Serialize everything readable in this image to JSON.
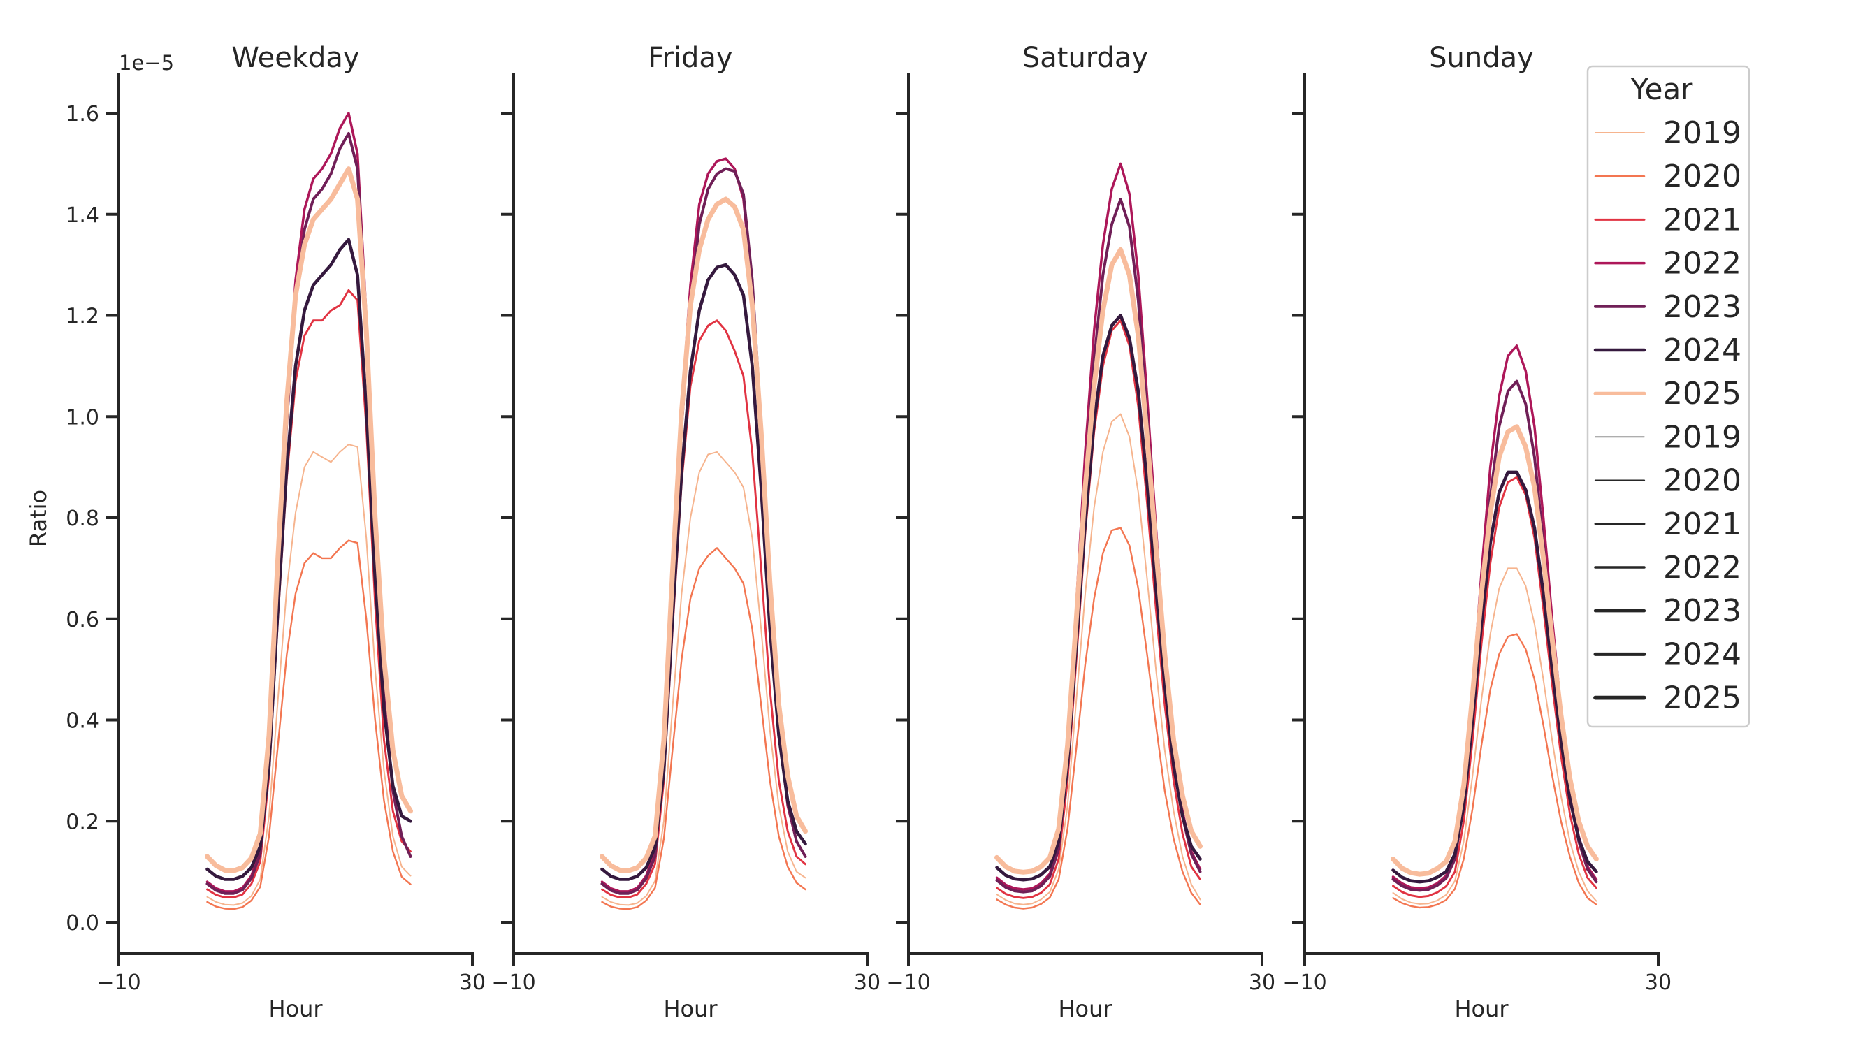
{
  "legend": {
    "title": "Year",
    "hue_entries": [
      {
        "label": "2019",
        "color": "#f6b48e",
        "swatch_width": 2.0
      },
      {
        "label": "2020",
        "color": "#f37651",
        "swatch_width": 2.5
      },
      {
        "label": "2021",
        "color": "#e13342",
        "swatch_width": 3.0
      },
      {
        "label": "2022",
        "color": "#ad1759",
        "swatch_width": 3.5
      },
      {
        "label": "2023",
        "color": "#701f57",
        "swatch_width": 4.0
      },
      {
        "label": "2024",
        "color": "#35193e",
        "swatch_width": 4.5
      },
      {
        "label": "2025",
        "color": "#f8bc9c",
        "swatch_width": 5.0
      }
    ],
    "size_entries": [
      {
        "label": "2019",
        "color": "#262626",
        "swatch_width": 1.5
      },
      {
        "label": "2020",
        "color": "#262626",
        "swatch_width": 2.2
      },
      {
        "label": "2021",
        "color": "#262626",
        "swatch_width": 2.9
      },
      {
        "label": "2022",
        "color": "#262626",
        "swatch_width": 3.6
      },
      {
        "label": "2023",
        "color": "#262626",
        "swatch_width": 4.3
      },
      {
        "label": "2024",
        "color": "#262626",
        "swatch_width": 5.0
      },
      {
        "label": "2025",
        "color": "#262626",
        "swatch_width": 5.8
      }
    ]
  },
  "chart_data": {
    "type": "line",
    "xlabel": "Hour",
    "ylabel": "Ratio",
    "y_offset_label": "1e−5",
    "xlim": [
      -10,
      30
    ],
    "ylim": [
      -0.062,
      1.68
    ],
    "x_tick_values": [
      -10,
      30
    ],
    "x_tick_labels": [
      "−10",
      "30"
    ],
    "y_tick_values": [
      0.0,
      0.2,
      0.4,
      0.6,
      0.8,
      1.0,
      1.2,
      1.4,
      1.6
    ],
    "y_tick_labels": [
      "0.0",
      "0.2",
      "0.4",
      "0.6",
      "0.8",
      "1.0",
      "1.2",
      "1.4",
      "1.6"
    ],
    "y_unit_multiplier": "1e-5",
    "grid": false,
    "legend_position": "upper right",
    "x": [
      0,
      1,
      2,
      3,
      4,
      5,
      6,
      7,
      8,
      9,
      10,
      11,
      12,
      13,
      14,
      15,
      16,
      17,
      18,
      19,
      20,
      21,
      22,
      23
    ],
    "years": [
      "2019",
      "2020",
      "2021",
      "2022",
      "2023",
      "2024",
      "2025"
    ],
    "palette": {
      "2019": "#f6b48e",
      "2020": "#f37651",
      "2021": "#e13342",
      "2022": "#ad1759",
      "2023": "#701f57",
      "2024": "#35193e",
      "2025": "#f8bc9c"
    },
    "line_widths": {
      "2019": 2.0,
      "2020": 2.4,
      "2021": 2.9,
      "2022": 3.5,
      "2023": 4.0,
      "2024": 4.6,
      "2025": 7.0
    },
    "panels": [
      {
        "title": "Weekday",
        "series": {
          "2019": [
            0.05,
            0.04,
            0.035,
            0.034,
            0.038,
            0.052,
            0.085,
            0.21,
            0.44,
            0.66,
            0.81,
            0.9,
            0.93,
            0.92,
            0.91,
            0.93,
            0.945,
            0.94,
            0.76,
            0.5,
            0.3,
            0.17,
            0.11,
            0.092
          ],
          "2020": [
            0.04,
            0.031,
            0.027,
            0.026,
            0.03,
            0.043,
            0.07,
            0.17,
            0.35,
            0.53,
            0.65,
            0.71,
            0.73,
            0.72,
            0.72,
            0.74,
            0.755,
            0.75,
            0.6,
            0.4,
            0.24,
            0.14,
            0.09,
            0.075
          ],
          "2021": [
            0.065,
            0.054,
            0.049,
            0.049,
            0.055,
            0.076,
            0.12,
            0.29,
            0.6,
            0.88,
            1.07,
            1.16,
            1.19,
            1.19,
            1.21,
            1.22,
            1.25,
            1.23,
            0.98,
            0.63,
            0.36,
            0.22,
            0.16,
            0.14
          ],
          "2022": [
            0.08,
            0.067,
            0.061,
            0.061,
            0.068,
            0.092,
            0.145,
            0.35,
            0.7,
            1.03,
            1.27,
            1.41,
            1.47,
            1.49,
            1.52,
            1.57,
            1.6,
            1.52,
            1.2,
            0.78,
            0.45,
            0.26,
            0.17,
            0.13
          ],
          "2023": [
            0.076,
            0.063,
            0.057,
            0.057,
            0.064,
            0.087,
            0.135,
            0.33,
            0.66,
            0.99,
            1.23,
            1.37,
            1.43,
            1.45,
            1.48,
            1.53,
            1.56,
            1.49,
            1.18,
            0.77,
            0.44,
            0.26,
            0.17,
            0.13
          ],
          "2024": [
            0.105,
            0.091,
            0.085,
            0.085,
            0.091,
            0.108,
            0.15,
            0.31,
            0.62,
            0.9,
            1.1,
            1.21,
            1.26,
            1.28,
            1.3,
            1.33,
            1.35,
            1.28,
            1.02,
            0.68,
            0.42,
            0.27,
            0.21,
            0.2
          ],
          "2025": [
            0.13,
            0.112,
            0.103,
            0.102,
            0.108,
            0.127,
            0.175,
            0.37,
            0.72,
            1.03,
            1.24,
            1.34,
            1.39,
            1.41,
            1.43,
            1.46,
            1.49,
            1.43,
            1.17,
            0.8,
            0.52,
            0.34,
            0.25,
            0.22
          ]
        }
      },
      {
        "title": "Friday",
        "series": {
          "2019": [
            0.05,
            0.04,
            0.035,
            0.034,
            0.038,
            0.052,
            0.082,
            0.2,
            0.43,
            0.65,
            0.8,
            0.89,
            0.925,
            0.93,
            0.91,
            0.89,
            0.86,
            0.76,
            0.58,
            0.38,
            0.23,
            0.14,
            0.1,
            0.088
          ],
          "2020": [
            0.04,
            0.031,
            0.027,
            0.026,
            0.03,
            0.043,
            0.068,
            0.165,
            0.345,
            0.52,
            0.64,
            0.7,
            0.725,
            0.74,
            0.72,
            0.7,
            0.67,
            0.58,
            0.43,
            0.28,
            0.17,
            0.11,
            0.078,
            0.065
          ],
          "2021": [
            0.065,
            0.054,
            0.049,
            0.049,
            0.055,
            0.076,
            0.115,
            0.28,
            0.585,
            0.87,
            1.06,
            1.15,
            1.18,
            1.19,
            1.17,
            1.13,
            1.08,
            0.93,
            0.7,
            0.46,
            0.28,
            0.18,
            0.13,
            0.115
          ],
          "2022": [
            0.08,
            0.067,
            0.061,
            0.061,
            0.068,
            0.092,
            0.14,
            0.34,
            0.69,
            1.02,
            1.26,
            1.42,
            1.48,
            1.505,
            1.51,
            1.49,
            1.43,
            1.25,
            0.96,
            0.63,
            0.38,
            0.23,
            0.16,
            0.13
          ],
          "2023": [
            0.076,
            0.063,
            0.057,
            0.057,
            0.064,
            0.087,
            0.13,
            0.32,
            0.655,
            0.98,
            1.22,
            1.38,
            1.45,
            1.48,
            1.49,
            1.485,
            1.44,
            1.27,
            0.98,
            0.64,
            0.39,
            0.235,
            0.16,
            0.13
          ],
          "2024": [
            0.105,
            0.091,
            0.085,
            0.085,
            0.091,
            0.108,
            0.148,
            0.3,
            0.61,
            0.89,
            1.09,
            1.21,
            1.27,
            1.295,
            1.3,
            1.28,
            1.24,
            1.1,
            0.86,
            0.58,
            0.37,
            0.24,
            0.18,
            0.155
          ],
          "2025": [
            0.13,
            0.112,
            0.103,
            0.102,
            0.108,
            0.127,
            0.17,
            0.36,
            0.7,
            1.01,
            1.22,
            1.33,
            1.39,
            1.42,
            1.43,
            1.415,
            1.37,
            1.22,
            0.97,
            0.67,
            0.43,
            0.29,
            0.21,
            0.18
          ]
        }
      },
      {
        "title": "Saturday",
        "series": {
          "2019": [
            0.055,
            0.044,
            0.037,
            0.035,
            0.037,
            0.045,
            0.06,
            0.105,
            0.23,
            0.44,
            0.65,
            0.82,
            0.93,
            0.99,
            1.005,
            0.96,
            0.85,
            0.68,
            0.5,
            0.34,
            0.22,
            0.13,
            0.075,
            0.045
          ],
          "2020": [
            0.045,
            0.035,
            0.029,
            0.027,
            0.029,
            0.036,
            0.049,
            0.085,
            0.185,
            0.345,
            0.51,
            0.64,
            0.73,
            0.775,
            0.78,
            0.745,
            0.66,
            0.53,
            0.39,
            0.26,
            0.165,
            0.1,
            0.058,
            0.035
          ],
          "2021": [
            0.068,
            0.056,
            0.05,
            0.048,
            0.05,
            0.058,
            0.075,
            0.125,
            0.28,
            0.52,
            0.77,
            0.97,
            1.1,
            1.17,
            1.19,
            1.14,
            1.02,
            0.83,
            0.62,
            0.43,
            0.28,
            0.175,
            0.11,
            0.085
          ],
          "2022": [
            0.088,
            0.074,
            0.067,
            0.065,
            0.067,
            0.077,
            0.096,
            0.155,
            0.34,
            0.63,
            0.93,
            1.17,
            1.34,
            1.45,
            1.5,
            1.44,
            1.28,
            1.04,
            0.78,
            0.54,
            0.35,
            0.22,
            0.14,
            0.105
          ],
          "2023": [
            0.083,
            0.069,
            0.062,
            0.06,
            0.062,
            0.072,
            0.091,
            0.145,
            0.32,
            0.59,
            0.88,
            1.11,
            1.28,
            1.38,
            1.43,
            1.375,
            1.23,
            1.0,
            0.75,
            0.52,
            0.335,
            0.21,
            0.135,
            0.1
          ],
          "2024": [
            0.108,
            0.093,
            0.086,
            0.084,
            0.086,
            0.094,
            0.11,
            0.16,
            0.31,
            0.55,
            0.79,
            0.99,
            1.12,
            1.18,
            1.2,
            1.155,
            1.05,
            0.87,
            0.66,
            0.47,
            0.31,
            0.21,
            0.15,
            0.125
          ],
          "2025": [
            0.128,
            0.11,
            0.101,
            0.099,
            0.101,
            0.11,
            0.128,
            0.185,
            0.35,
            0.6,
            0.86,
            1.06,
            1.21,
            1.3,
            1.33,
            1.28,
            1.16,
            0.96,
            0.74,
            0.53,
            0.36,
            0.25,
            0.18,
            0.15
          ]
        }
      },
      {
        "title": "Sunday",
        "series": {
          "2019": [
            0.058,
            0.046,
            0.039,
            0.036,
            0.037,
            0.043,
            0.054,
            0.082,
            0.16,
            0.29,
            0.44,
            0.57,
            0.66,
            0.7,
            0.7,
            0.665,
            0.59,
            0.48,
            0.36,
            0.25,
            0.16,
            0.1,
            0.062,
            0.042
          ],
          "2020": [
            0.048,
            0.038,
            0.032,
            0.029,
            0.03,
            0.035,
            0.044,
            0.066,
            0.125,
            0.225,
            0.35,
            0.46,
            0.53,
            0.565,
            0.57,
            0.54,
            0.48,
            0.39,
            0.29,
            0.2,
            0.13,
            0.078,
            0.048,
            0.035
          ],
          "2021": [
            0.072,
            0.06,
            0.053,
            0.05,
            0.052,
            0.059,
            0.071,
            0.1,
            0.2,
            0.36,
            0.55,
            0.71,
            0.82,
            0.87,
            0.88,
            0.845,
            0.76,
            0.62,
            0.47,
            0.33,
            0.215,
            0.135,
            0.088,
            0.068
          ],
          "2022": [
            0.09,
            0.077,
            0.069,
            0.067,
            0.069,
            0.077,
            0.092,
            0.135,
            0.26,
            0.46,
            0.69,
            0.9,
            1.04,
            1.12,
            1.14,
            1.09,
            0.98,
            0.8,
            0.6,
            0.42,
            0.27,
            0.17,
            0.11,
            0.085
          ],
          "2023": [
            0.085,
            0.072,
            0.065,
            0.063,
            0.065,
            0.073,
            0.087,
            0.125,
            0.24,
            0.43,
            0.65,
            0.84,
            0.98,
            1.05,
            1.07,
            1.025,
            0.92,
            0.75,
            0.57,
            0.4,
            0.26,
            0.16,
            0.105,
            0.08
          ],
          "2024": [
            0.103,
            0.089,
            0.082,
            0.08,
            0.082,
            0.089,
            0.1,
            0.135,
            0.23,
            0.4,
            0.59,
            0.75,
            0.85,
            0.89,
            0.89,
            0.855,
            0.78,
            0.65,
            0.5,
            0.36,
            0.245,
            0.165,
            0.12,
            0.1
          ],
          "2025": [
            0.125,
            0.107,
            0.098,
            0.095,
            0.097,
            0.106,
            0.12,
            0.16,
            0.27,
            0.45,
            0.65,
            0.81,
            0.92,
            0.97,
            0.98,
            0.94,
            0.86,
            0.72,
            0.56,
            0.41,
            0.285,
            0.2,
            0.15,
            0.125
          ]
        }
      }
    ]
  }
}
